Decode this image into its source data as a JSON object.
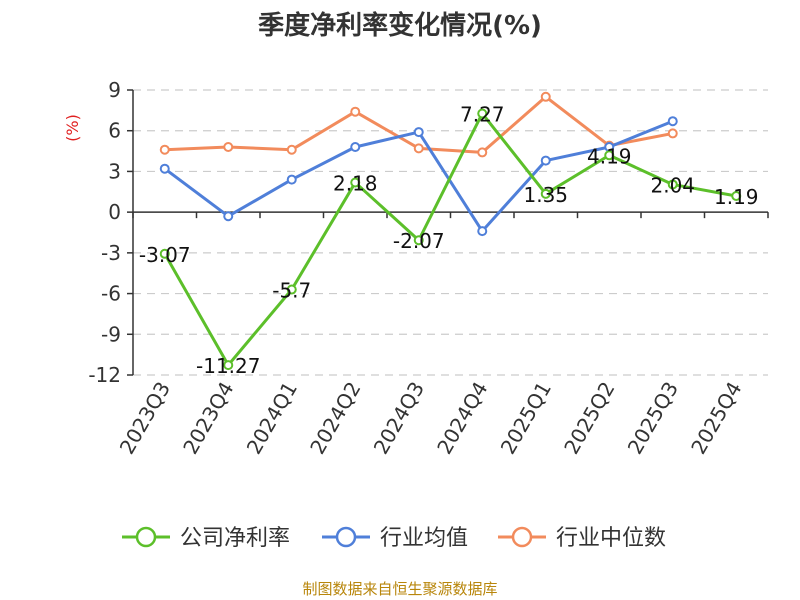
{
  "chart_data": {
    "type": "line",
    "title": "季度净利率变化情况(%)",
    "ylabel": "(%)",
    "ylim": [
      -12,
      9
    ],
    "yticks": [
      9,
      6,
      3,
      0,
      -3,
      -6,
      -9,
      -12
    ],
    "categories": [
      "2023Q3",
      "2023Q4",
      "2024Q1",
      "2024Q2",
      "2024Q3",
      "2024Q4",
      "2025Q1",
      "2025Q2",
      "2025Q3",
      "2025Q4"
    ],
    "grid": true,
    "legend_position": "bottom",
    "series": [
      {
        "name": "公司净利率",
        "color": "#5cbf2a",
        "labeled": true,
        "values": [
          -3.07,
          -11.27,
          -5.7,
          2.18,
          -2.07,
          7.27,
          1.35,
          4.19,
          2.04,
          1.19
        ]
      },
      {
        "name": "行业均值",
        "color": "#4f7fd9",
        "labeled": false,
        "values": [
          3.2,
          -0.3,
          2.4,
          4.8,
          5.9,
          -1.4,
          3.8,
          4.8,
          6.7,
          null
        ]
      },
      {
        "name": "行业中位数",
        "color": "#f28b5c",
        "labeled": false,
        "values": [
          4.6,
          4.8,
          4.6,
          7.4,
          4.7,
          4.4,
          8.5,
          4.9,
          5.8,
          null
        ]
      }
    ]
  },
  "footer": "制图数据来自恒生聚源数据库"
}
